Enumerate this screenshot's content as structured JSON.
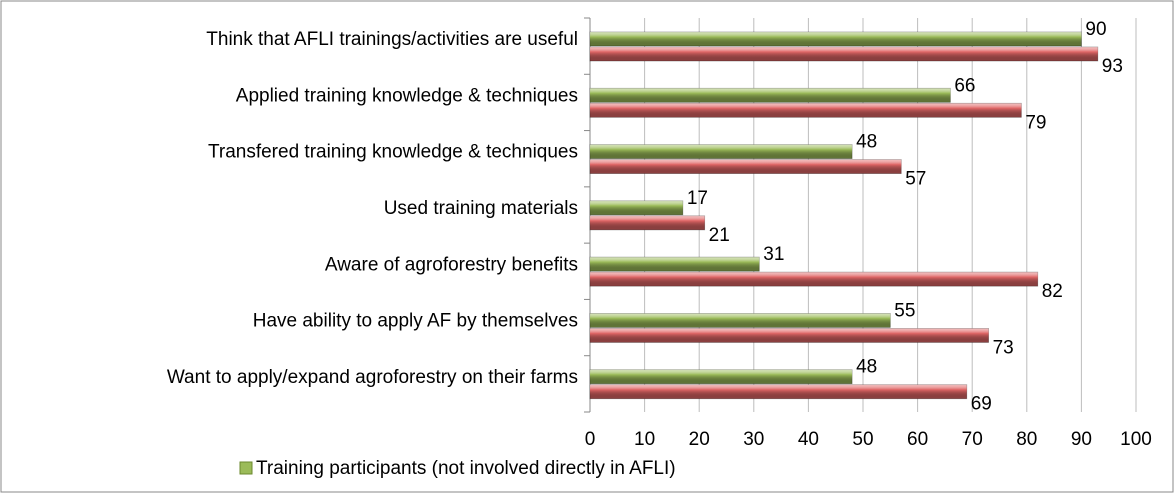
{
  "chart_data": {
    "type": "bar",
    "orientation": "horizontal",
    "categories": [
      "Think that AFLI trainings/activities are useful",
      "Applied training knowledge & techniques",
      "Transfered training knowledge & techniques",
      "Used training materials",
      "Aware of agroforestry benefits",
      "Have ability to apply AF by themselves",
      "Want to apply/expand  agroforestry on their farms"
    ],
    "series": [
      {
        "name": "Training participants (not involved directly in AFLI)",
        "color": "#9bbb59",
        "values": [
          90,
          66,
          48,
          17,
          31,
          55,
          48
        ]
      },
      {
        "color": "#e06666",
        "values": [
          93,
          79,
          57,
          21,
          82,
          73,
          69
        ]
      }
    ],
    "xlim": [
      0,
      100
    ],
    "xticks": [
      0,
      10,
      20,
      30,
      40,
      50,
      60,
      70,
      80,
      90,
      100
    ],
    "grid": true,
    "legend": "bottom"
  }
}
